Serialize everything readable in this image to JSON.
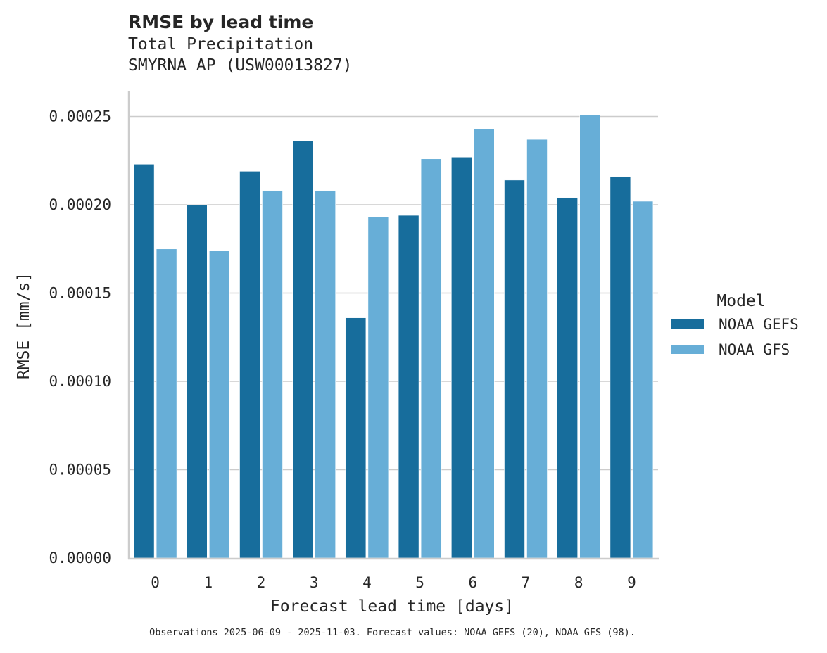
{
  "header": {
    "title": "RMSE by lead time",
    "subtitle_line1": "Total Precipitation",
    "subtitle_line2": "SMYRNA AP (USW00013827)"
  },
  "footnote": "Observations 2025-06-09 - 2025-11-03. Forecast values: NOAA GEFS (20), NOAA GFS (98).",
  "chart_data": {
    "type": "bar",
    "title": "RMSE by lead time",
    "subtitle": "Total Precipitation — SMYRNA AP (USW00013827)",
    "xlabel": "Forecast lead time [days]",
    "ylabel": "RMSE [mm/s]",
    "categories": [
      "0",
      "1",
      "2",
      "3",
      "4",
      "5",
      "6",
      "7",
      "8",
      "9"
    ],
    "series": [
      {
        "name": "NOAA GEFS",
        "color": "#176d9c",
        "values": [
          0.000223,
          0.0002,
          0.000219,
          0.000236,
          0.000136,
          0.000194,
          0.000227,
          0.000214,
          0.000204,
          0.000216
        ]
      },
      {
        "name": "NOAA GFS",
        "color": "#67aed7",
        "values": [
          0.000175,
          0.000174,
          0.000208,
          0.000208,
          0.000193,
          0.000226,
          0.000243,
          0.000237,
          0.000251,
          0.000202
        ]
      }
    ],
    "yticks": [
      "0.00000",
      "0.00005",
      "0.00010",
      "0.00015",
      "0.00020",
      "0.00025"
    ],
    "ylim": [
      0,
      0.000264
    ],
    "grid": {
      "y": true,
      "x": false,
      "color": "#cccccc"
    },
    "legend": {
      "title": "Model",
      "position": "right"
    }
  }
}
